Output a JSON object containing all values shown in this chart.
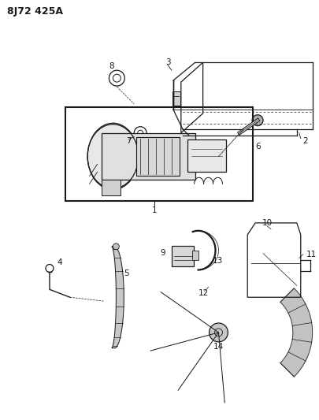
{
  "title_code": "8J72 425A",
  "bg": "#ffffff",
  "lc": "#1a1a1a",
  "fig_width": 4.06,
  "fig_height": 5.33,
  "dpi": 100
}
